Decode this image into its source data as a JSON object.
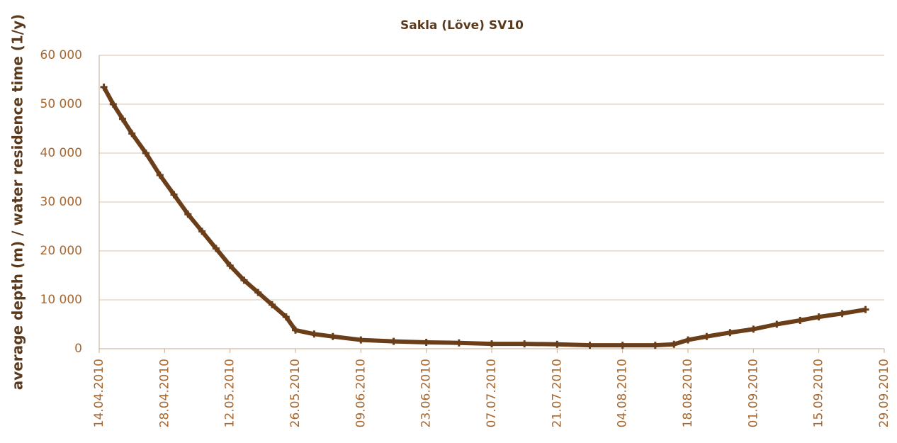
{
  "chart_data": {
    "type": "line",
    "title": "Sakla (Lõve) SV10",
    "y_label": "average depth (m) / water residence time (1/y)",
    "color": "#6b3e1a",
    "grid": true,
    "x": [
      "15.04.2010",
      "17.04.2010",
      "19.04.2010",
      "21.04.2010",
      "24.04.2010",
      "27.04.2010",
      "30.04.2010",
      "03.05.2010",
      "06.05.2010",
      "09.05.2010",
      "12.05.2010",
      "15.05.2010",
      "18.05.2010",
      "21.05.2010",
      "24.05.2010",
      "26.05.2010",
      "30.05.2010",
      "03.06.2010",
      "09.06.2010",
      "16.06.2010",
      "23.06.2010",
      "30.06.2010",
      "07.07.2010",
      "14.07.2010",
      "21.07.2010",
      "28.07.2010",
      "04.08.2010",
      "11.08.2010",
      "15.08.2010",
      "18.08.2010",
      "22.08.2010",
      "27.08.2010",
      "01.09.2010",
      "06.09.2010",
      "11.09.2010",
      "15.09.2010",
      "20.09.2010",
      "25.09.2010"
    ],
    "values": [
      53500,
      50000,
      47000,
      44000,
      40000,
      35500,
      31500,
      27500,
      24000,
      20500,
      17000,
      14000,
      11500,
      9000,
      6500,
      3800,
      3000,
      2500,
      1800,
      1500,
      1300,
      1200,
      1000,
      1000,
      900,
      700,
      700,
      700,
      900,
      1800,
      2500,
      3300,
      4000,
      5000,
      5800,
      6500,
      7200,
      8000
    ],
    "xlim": [
      "14.04.2010",
      "29.09.2010"
    ],
    "xticks": [
      "14.04.2010",
      "28.04.2010",
      "12.05.2010",
      "26.05.2010",
      "09.06.2010",
      "23.06.2010",
      "07.07.2010",
      "21.07.2010",
      "04.08.2010",
      "18.08.2010",
      "01.09.2010",
      "15.09.2010",
      "29.09.2010"
    ],
    "ylim": [
      0,
      60000
    ],
    "yticks": [
      0,
      {
        "value": 10000,
        "label": "10 000"
      },
      {
        "value": 20000,
        "label": "20 000"
      },
      {
        "value": 30000,
        "label": "30 000"
      },
      {
        "value": 40000,
        "label": "40 000"
      },
      {
        "value": 50000,
        "label": "50 000"
      },
      {
        "value": 60000,
        "label": "60 000"
      }
    ]
  }
}
